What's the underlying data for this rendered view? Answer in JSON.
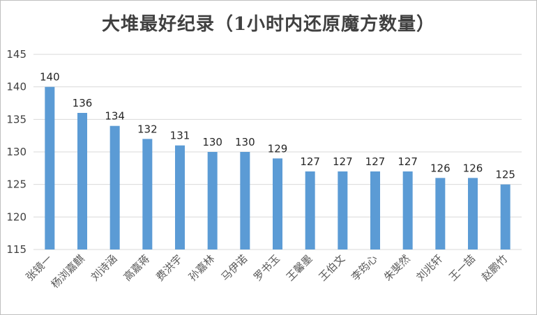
{
  "chart_data": {
    "type": "bar",
    "title": "大堆最好纪录（1小时内还原魔方数量）",
    "xlabel": "",
    "ylabel": "",
    "categories": [
      "张镜一",
      "杨浏嘉麒",
      "刘诗涵",
      "高嘉蒋",
      "费洪宇",
      "孙嘉林",
      "马伊诺",
      "罗书玉",
      "王馨墨",
      "王伯文",
      "李筠心",
      "朱斐然",
      "刘兆轩",
      "王一喆",
      "赵鹏竹"
    ],
    "values": [
      140,
      136,
      134,
      132,
      131,
      130,
      130,
      129,
      127,
      127,
      127,
      127,
      126,
      126,
      125
    ],
    "ylim": [
      115,
      145
    ],
    "yticks": [
      115,
      120,
      125,
      130,
      135,
      140,
      145
    ],
    "grid": true,
    "legend": "none",
    "colors": {
      "bar": "#5b9bd5",
      "grid": "#d9d9d9",
      "axis_text": "#404040"
    }
  }
}
